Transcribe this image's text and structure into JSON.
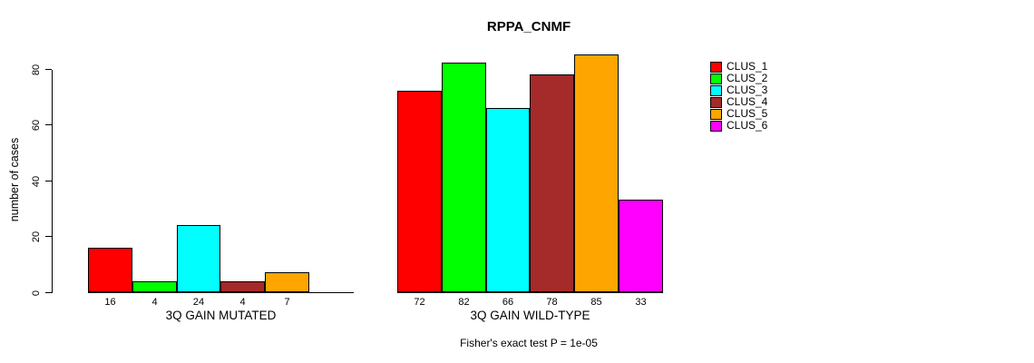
{
  "title": "RPPA_CNMF",
  "footer": "Fisher's exact test P = 1e-05",
  "chart_data": {
    "type": "bar",
    "title": "RPPA_CNMF",
    "xlabel": "",
    "ylabel": "number of cases",
    "ylim": [
      0,
      85
    ],
    "yticks": [
      0,
      20,
      40,
      60,
      80
    ],
    "grid": false,
    "legend_position": "right",
    "legend_labels": [
      "CLUS_1",
      "CLUS_2",
      "CLUS_3",
      "CLUS_4",
      "CLUS_5",
      "CLUS_6"
    ],
    "series_colors": [
      "#FF0000",
      "#00FF00",
      "#00FFFF",
      "#A52A2A",
      "#FFA500",
      "#FF00FF"
    ],
    "groups": [
      {
        "label": "3Q GAIN MUTATED",
        "values": [
          16,
          4,
          24,
          4,
          7,
          0
        ],
        "bar_labels": [
          "16",
          "4",
          "24",
          "4",
          "7",
          ""
        ]
      },
      {
        "label": "3Q GAIN WILD-TYPE",
        "values": [
          72,
          82,
          66,
          78,
          85,
          33
        ],
        "bar_labels": [
          "72",
          "82",
          "66",
          "78",
          "85",
          "33"
        ]
      }
    ],
    "annotation": "Fisher's exact test P = 1e-05"
  }
}
